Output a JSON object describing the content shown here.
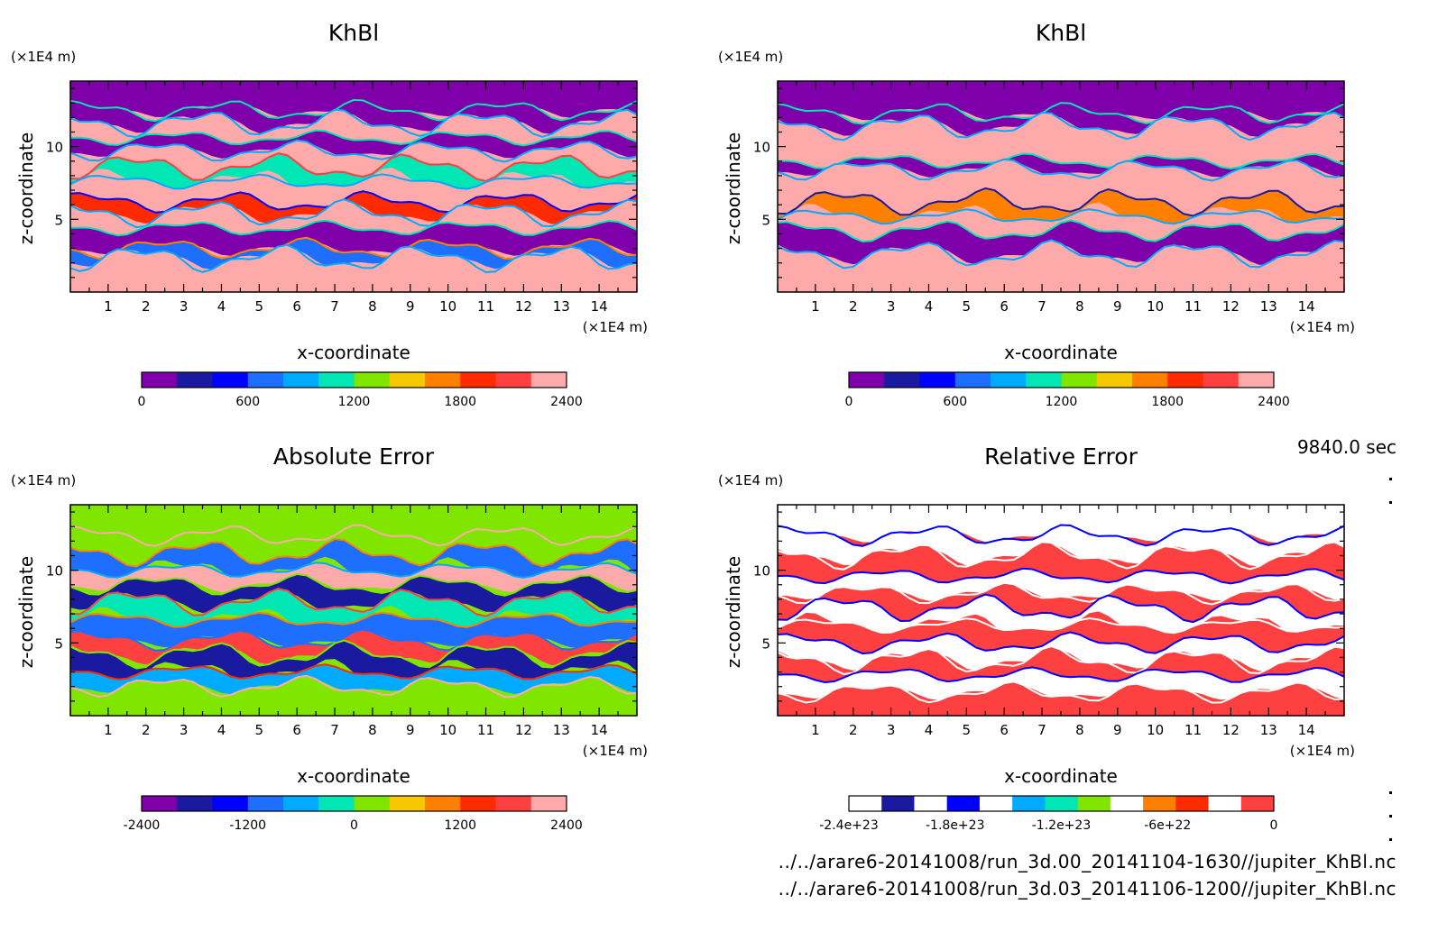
{
  "time_label": "9840.0 sec",
  "footer_lines": [
    "../../arare6-20141008/run_3d.00_20141104-1630//jupiter_KhBl.nc",
    "../../arare6-20141008/run_3d.03_20141106-1200//jupiter_KhBl.nc"
  ],
  "colors": {
    "kh_palette": [
      "#7f00aa",
      "#1a1aa0",
      "#0000ff",
      "#1e6eff",
      "#00aaff",
      "#00e6b4",
      "#80e600",
      "#f5c800",
      "#ff8000",
      "#ff2a00",
      "#ff4040",
      "#ffaaaa"
    ],
    "err_palette": [
      "#7f00aa",
      "#1a1aa0",
      "#0000ff",
      "#1e6eff",
      "#00aaff",
      "#00e6b4",
      "#80e600",
      "#f5c800",
      "#ff8000",
      "#ff2a00",
      "#ff4040",
      "#ffaaaa"
    ],
    "rel_palette": [
      "#ffffff",
      "#1a1aa0",
      "#ffffff",
      "#0000ff",
      "#ffffff",
      "#00aaff",
      "#00e6b4",
      "#80e600",
      "#ffffff",
      "#ff8000",
      "#ff2a00",
      "#ffffff",
      "#ff4040"
    ]
  },
  "chart_data": [
    {
      "id": "khbl-run00",
      "type": "heatmap",
      "title": "KhBl",
      "xlabel": "x-coordinate",
      "ylabel": "z-coordinate",
      "x_unit": "(×1E4 m)",
      "y_unit": "(×1E4 m)",
      "xlim": [
        0,
        15
      ],
      "ylim": [
        0,
        14.5
      ],
      "xticks": [
        "1",
        "2",
        "3",
        "4",
        "5",
        "6",
        "7",
        "8",
        "9",
        "10",
        "11",
        "12",
        "13",
        "14"
      ],
      "yticks": [
        "5",
        "10"
      ],
      "colorbar": {
        "ticks": [
          "0",
          "600",
          "1200",
          "1800",
          "2400"
        ],
        "range": [
          0,
          2400
        ]
      },
      "bands": [
        {
          "z": 14.5,
          "level": 0
        },
        {
          "z": 12.5,
          "level": 0
        },
        {
          "z": 11.6,
          "level": 11
        },
        {
          "z": 10.6,
          "level": 0
        },
        {
          "z": 9.7,
          "level": 11
        },
        {
          "z": 8.6,
          "level": 5
        },
        {
          "z": 7.6,
          "level": 11
        },
        {
          "z": 6.2,
          "level": 9
        },
        {
          "z": 5.4,
          "level": 11
        },
        {
          "z": 4.4,
          "level": 0
        },
        {
          "z": 3.0,
          "level": 3
        },
        {
          "z": 2.3,
          "level": 11
        },
        {
          "z": 0,
          "level": 11
        }
      ]
    },
    {
      "id": "khbl-run03",
      "type": "heatmap",
      "title": "KhBl",
      "xlabel": "x-coordinate",
      "ylabel": "z-coordinate",
      "x_unit": "(×1E4 m)",
      "y_unit": "(×1E4 m)",
      "xlim": [
        0,
        15
      ],
      "ylim": [
        0,
        14.5
      ],
      "xticks": [
        "1",
        "2",
        "3",
        "4",
        "5",
        "6",
        "7",
        "8",
        "9",
        "10",
        "11",
        "12",
        "13",
        "14"
      ],
      "yticks": [
        "5",
        "10"
      ],
      "colorbar": {
        "ticks": [
          "0",
          "600",
          "1200",
          "1800",
          "2400"
        ],
        "range": [
          0,
          2400
        ]
      },
      "bands": [
        {
          "z": 14.5,
          "level": 0
        },
        {
          "z": 12.3,
          "level": 0
        },
        {
          "z": 11.4,
          "level": 11
        },
        {
          "z": 9.0,
          "level": 0
        },
        {
          "z": 8.4,
          "level": 11
        },
        {
          "z": 6.2,
          "level": 8
        },
        {
          "z": 5.2,
          "level": 11
        },
        {
          "z": 4.2,
          "level": 0
        },
        {
          "z": 2.6,
          "level": 11
        },
        {
          "z": 0,
          "level": 11
        }
      ]
    },
    {
      "id": "absolute-error",
      "type": "heatmap",
      "title": "Absolute Error",
      "xlabel": "x-coordinate",
      "ylabel": "z-coordinate",
      "x_unit": "(×1E4 m)",
      "y_unit": "(×1E4 m)",
      "xlim": [
        0,
        15
      ],
      "ylim": [
        0,
        14.5
      ],
      "xticks": [
        "1",
        "2",
        "3",
        "4",
        "5",
        "6",
        "7",
        "8",
        "9",
        "10",
        "11",
        "12",
        "13",
        "14"
      ],
      "yticks": [
        "5",
        "10"
      ],
      "colorbar": {
        "ticks": [
          "-2400",
          "-1200",
          "0",
          "1200",
          "2400"
        ],
        "range": [
          -2400,
          2400
        ]
      },
      "bands": [
        {
          "z": 14.5,
          "level": 6
        },
        {
          "z": 12.4,
          "level": 6
        },
        {
          "z": 11.2,
          "level": 3
        },
        {
          "z": 10.0,
          "level": 11
        },
        {
          "z": 9.0,
          "level": 1
        },
        {
          "z": 7.8,
          "level": 5
        },
        {
          "z": 6.6,
          "level": 3
        },
        {
          "z": 5.2,
          "level": 10
        },
        {
          "z": 4.2,
          "level": 1
        },
        {
          "z": 3.0,
          "level": 4
        },
        {
          "z": 2.0,
          "level": 6
        },
        {
          "z": 0,
          "level": 6
        }
      ]
    },
    {
      "id": "relative-error",
      "type": "heatmap",
      "title": "Relative Error",
      "xlabel": "x-coordinate",
      "ylabel": "z-coordinate",
      "x_unit": "(×1E4 m)",
      "y_unit": "(×1E4 m)",
      "xlim": [
        0,
        15
      ],
      "ylim": [
        0,
        14.5
      ],
      "xticks": [
        "1",
        "2",
        "3",
        "4",
        "5",
        "6",
        "7",
        "8",
        "9",
        "10",
        "11",
        "12",
        "13",
        "14"
      ],
      "yticks": [
        "5",
        "10"
      ],
      "colorbar": {
        "ticks": [
          "-2.4e+23",
          "-1.8e+23",
          "-1.2e+23",
          "-6e+22",
          "0"
        ],
        "range": [
          -2.4e+23,
          0
        ]
      },
      "bands": [
        {
          "z": 14.5,
          "level": 11
        },
        {
          "z": 12.4,
          "level": 11
        },
        {
          "z": 11.0,
          "level": 12
        },
        {
          "z": 9.6,
          "level": 11
        },
        {
          "z": 8.4,
          "level": 12
        },
        {
          "z": 7.4,
          "level": 11
        },
        {
          "z": 6.2,
          "level": 12
        },
        {
          "z": 5.0,
          "level": 11
        },
        {
          "z": 3.8,
          "level": 12
        },
        {
          "z": 2.8,
          "level": 11
        },
        {
          "z": 1.6,
          "level": 12
        },
        {
          "z": 0,
          "level": 12
        }
      ]
    }
  ]
}
